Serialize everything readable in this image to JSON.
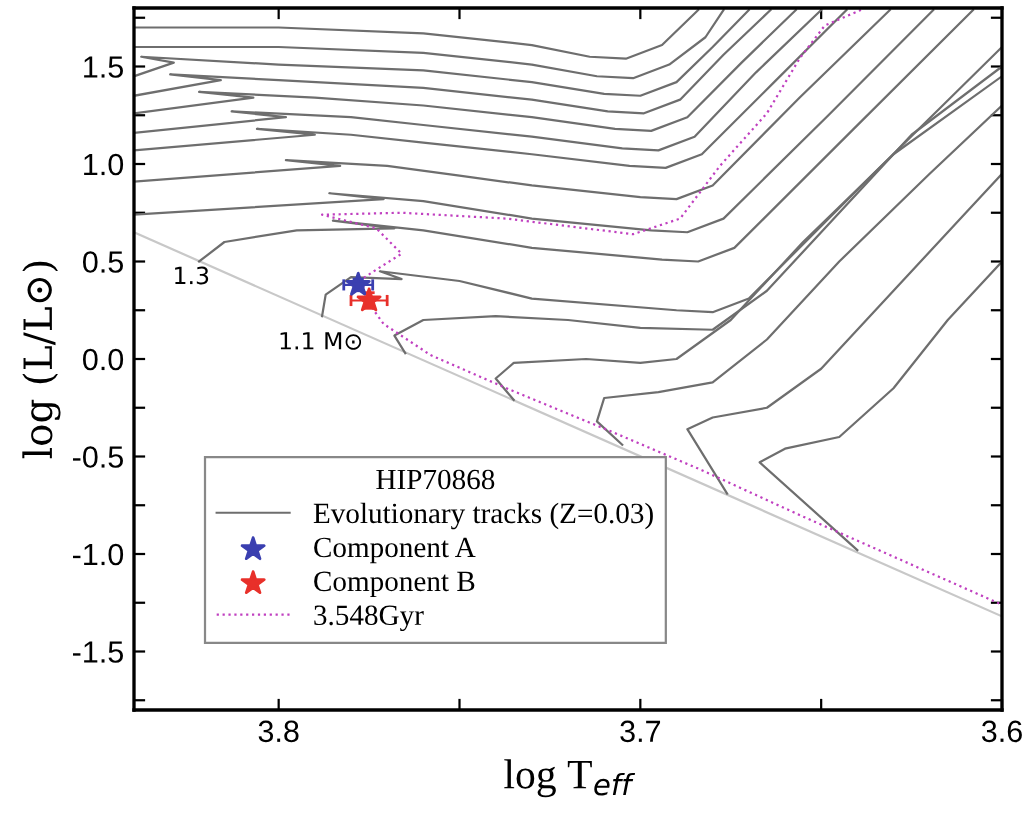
{
  "chart_data": {
    "type": "line",
    "xlabel": "log T$_{eff}$",
    "ylabel": "log (L/L⊙)",
    "legend_title": "HIP70868",
    "legend": "bottom left",
    "xlim": [
      3.84,
      3.6
    ],
    "ylim": [
      -1.8,
      1.8
    ],
    "xticks": [
      3.8,
      {
        "value": 3.75,
        "label": null
      },
      3.7,
      {
        "value": 3.65,
        "label": null
      },
      3.6
    ],
    "yticks": [
      {
        "value": -1.75,
        "label": null
      },
      {
        "value": -1.5,
        "label": "-1.5"
      },
      {
        "value": -1.25,
        "label": null
      },
      {
        "value": -1.0,
        "label": "-1.0"
      },
      {
        "value": -0.75,
        "label": null
      },
      {
        "value": -0.5,
        "label": "-0.5"
      },
      {
        "value": -0.25,
        "label": null
      },
      {
        "value": 0.0,
        "label": "0.0"
      },
      {
        "value": 0.25,
        "label": null
      },
      {
        "value": 0.5,
        "label": "0.5"
      },
      {
        "value": 0.75,
        "label": null
      },
      {
        "value": 1.0,
        "label": "1.0"
      },
      {
        "value": 1.25,
        "label": null
      },
      {
        "value": 1.5,
        "label": "1.5"
      },
      {
        "value": 1.75,
        "label": null
      }
    ],
    "annotations": [
      "1.3",
      "1.1 M⊙"
    ],
    "series": [
      {
        "color": "#c8c8c8",
        "x": [
          3.84,
          3.6
        ],
        "values": [
          0.65,
          -1.32
        ]
      },
      {
        "name": "Evolutionary tracks (Z=0.03)",
        "color": "#6e6e6e",
        "x": [
          3.84,
          3.8,
          3.76,
          3.73,
          3.714,
          3.704,
          3.694,
          3.684
        ],
        "values": [
          1.7,
          1.7,
          1.67,
          1.61,
          1.55,
          1.54,
          1.61,
          1.79
        ]
      },
      {
        "color": "#6e6e6e",
        "x": [
          3.84,
          3.8,
          3.76,
          3.73,
          3.712,
          3.702,
          3.692,
          3.682,
          3.677
        ],
        "values": [
          1.6,
          1.6,
          1.57,
          1.51,
          1.45,
          1.44,
          1.51,
          1.65,
          1.79
        ]
      },
      {
        "color": "#6e6e6e",
        "x": [
          3.84,
          3.829,
          3.838,
          3.8,
          3.76,
          3.73,
          3.71,
          3.7,
          3.69,
          3.68,
          3.67
        ],
        "values": [
          1.45,
          1.52,
          1.55,
          1.51,
          1.48,
          1.42,
          1.36,
          1.35,
          1.42,
          1.6,
          1.79
        ]
      },
      {
        "color": "#6e6e6e",
        "x": [
          3.84,
          3.816,
          3.83,
          3.8,
          3.76,
          3.73,
          3.709,
          3.699,
          3.689,
          3.677,
          3.664
        ],
        "values": [
          1.35,
          1.43,
          1.46,
          1.43,
          1.39,
          1.33,
          1.27,
          1.26,
          1.33,
          1.56,
          1.79
        ]
      },
      {
        "color": "#6e6e6e",
        "x": [
          3.84,
          3.807,
          3.822,
          3.79,
          3.76,
          3.73,
          3.707,
          3.697,
          3.687,
          3.672,
          3.657
        ],
        "values": [
          1.26,
          1.34,
          1.37,
          1.34,
          1.3,
          1.24,
          1.18,
          1.17,
          1.24,
          1.52,
          1.79
        ]
      },
      {
        "color": "#6e6e6e",
        "x": [
          3.84,
          3.798,
          3.813,
          3.78,
          3.76,
          3.73,
          3.705,
          3.695,
          3.685,
          3.668,
          3.65
        ],
        "values": [
          1.16,
          1.24,
          1.27,
          1.24,
          1.2,
          1.14,
          1.08,
          1.07,
          1.14,
          1.47,
          1.79
        ]
      },
      {
        "color": "#6e6e6e",
        "x": [
          3.84,
          3.79,
          3.806,
          3.78,
          3.76,
          3.73,
          3.703,
          3.693,
          3.683,
          3.663,
          3.643
        ],
        "values": [
          1.07,
          1.15,
          1.18,
          1.15,
          1.11,
          1.05,
          0.99,
          0.98,
          1.05,
          1.42,
          1.79
        ]
      },
      {
        "color": "#6e6e6e",
        "x": [
          3.84,
          3.783,
          3.798,
          3.77,
          3.75,
          3.73,
          3.7,
          3.69,
          3.68,
          3.656,
          3.631
        ],
        "values": [
          0.91,
          0.99,
          1.02,
          0.99,
          0.94,
          0.89,
          0.83,
          0.82,
          0.89,
          1.34,
          1.79
        ]
      },
      {
        "color": "#6e6e6e",
        "x": [
          3.84,
          3.771,
          3.786,
          3.76,
          3.73,
          3.697,
          3.687,
          3.677,
          3.648,
          3.619
        ],
        "values": [
          0.74,
          0.82,
          0.85,
          0.81,
          0.72,
          0.66,
          0.65,
          0.72,
          1.25,
          1.79
        ]
      },
      {
        "color": "#6e6e6e",
        "x": [
          3.822,
          3.815,
          3.795,
          3.768,
          3.785,
          3.76,
          3.73,
          3.694,
          3.684,
          3.674,
          3.641,
          3.608
        ],
        "values": [
          0.5,
          0.6,
          0.66,
          0.67,
          0.71,
          0.66,
          0.57,
          0.51,
          0.5,
          0.57,
          1.18,
          1.79
        ]
      },
      {
        "color": "#6e6e6e",
        "x": [
          3.788,
          3.787,
          3.78,
          3.766,
          3.772,
          3.75,
          3.73,
          3.69,
          3.68,
          3.67,
          3.635,
          3.6
        ],
        "values": [
          0.22,
          0.33,
          0.42,
          0.41,
          0.45,
          0.4,
          0.31,
          0.25,
          0.24,
          0.31,
          0.96,
          1.6
        ]
      },
      {
        "color": "#6e6e6e",
        "x": [
          3.765,
          3.768,
          3.76,
          3.74,
          3.72,
          3.7,
          3.68,
          3.665,
          3.645,
          3.625,
          3.6
        ],
        "values": [
          0.03,
          0.12,
          0.2,
          0.22,
          0.2,
          0.16,
          0.15,
          0.35,
          0.75,
          1.15,
          1.5
        ]
      },
      {
        "color": "#6e6e6e",
        "x": [
          3.735,
          3.74,
          3.735,
          3.715,
          3.7,
          3.69,
          3.675,
          3.655,
          3.63,
          3.6
        ],
        "values": [
          -0.21,
          -0.1,
          -0.02,
          0.0,
          -0.02,
          0.0,
          0.2,
          0.6,
          1.05,
          1.45
        ]
      },
      {
        "color": "#6e6e6e",
        "x": [
          3.705,
          3.712,
          3.71,
          3.695,
          3.68,
          3.665,
          3.645,
          3.62,
          3.6
        ],
        "values": [
          -0.44,
          -0.32,
          -0.2,
          -0.17,
          -0.12,
          0.1,
          0.5,
          0.95,
          1.3
        ]
      },
      {
        "color": "#6e6e6e",
        "x": [
          3.676,
          3.687,
          3.68,
          3.665,
          3.65,
          3.63,
          3.61,
          3.6
        ],
        "values": [
          -0.69,
          -0.36,
          -0.3,
          -0.25,
          -0.05,
          0.35,
          0.75,
          0.95
        ]
      },
      {
        "color": "#6e6e6e",
        "x": [
          3.64,
          3.667,
          3.66,
          3.645,
          3.63,
          3.615,
          3.6
        ],
        "values": [
          -0.98,
          -0.53,
          -0.46,
          -0.4,
          -0.15,
          0.2,
          0.5
        ]
      },
      {
        "name": "Component A",
        "type": "scatter",
        "marker": "star",
        "color": "#3a3fb0",
        "x": [
          3.778
        ],
        "values": [
          0.38
        ],
        "errors": [
          0.03
        ],
        "xerrors": [
          0.004
        ]
      },
      {
        "name": "Component B",
        "type": "scatter",
        "marker": "star",
        "color": "#e8302a",
        "x": [
          3.775
        ],
        "values": [
          0.3
        ],
        "errors": [
          0.04
        ],
        "xerrors": [
          0.005
        ]
      },
      {
        "name": "3.548Gyr",
        "line_style": "dotted",
        "color": "#c040c0",
        "x": [
          3.639,
          3.649,
          3.656,
          3.665,
          3.678,
          3.689,
          3.702,
          3.737,
          3.766,
          3.788,
          3.773,
          3.766,
          3.772,
          3.777,
          3.776,
          3.771,
          3.758,
          3.737,
          3.707,
          3.683,
          3.656,
          3.628,
          3.6
        ],
        "values": [
          1.79,
          1.71,
          1.54,
          1.26,
          0.99,
          0.72,
          0.64,
          0.72,
          0.75,
          0.74,
          0.67,
          0.54,
          0.47,
          0.41,
          0.31,
          0.18,
          0.02,
          -0.15,
          -0.38,
          -0.57,
          -0.8,
          -1.03,
          -1.26
        ]
      }
    ]
  }
}
